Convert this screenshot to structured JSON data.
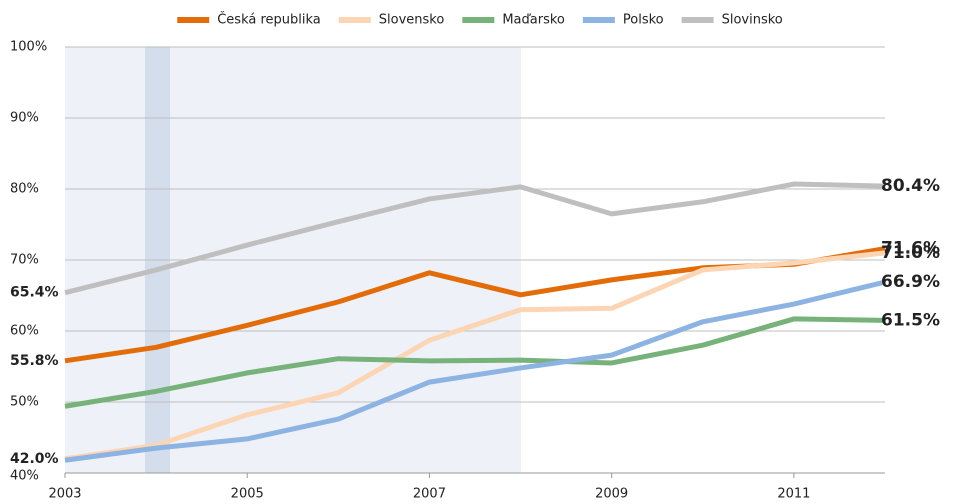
{
  "chart_data": {
    "type": "line",
    "x": [
      2003,
      2004,
      2005,
      2006,
      2007,
      2008,
      2009,
      2010,
      2011,
      2012
    ],
    "xlim": [
      2003,
      2012
    ],
    "xticks": [
      2003,
      2005,
      2007,
      2009,
      2011
    ],
    "ylim": [
      40,
      100
    ],
    "yticks": [
      {
        "value": 40,
        "label": "40%"
      },
      {
        "value": 50,
        "label": "50%"
      },
      {
        "value": 60,
        "label": "60%"
      },
      {
        "value": 70,
        "label": "70%"
      },
      {
        "value": 80,
        "label": "80%"
      },
      {
        "value": 90,
        "label": "90%"
      },
      {
        "value": 100,
        "label": "100%"
      }
    ],
    "grid": true,
    "legend": "top",
    "series": [
      {
        "name": "Česká republika",
        "color": "#e36c0a",
        "values": [
          55.8,
          57.7,
          60.8,
          64.1,
          68.2,
          65.1,
          67.2,
          68.9,
          69.4,
          71.6
        ],
        "value_labels": [
          "55.8%",
          null,
          null,
          null,
          null,
          null,
          null,
          null,
          null,
          "71.6%"
        ]
      },
      {
        "name": "Slovensko",
        "color": "#fcd5b5",
        "values": [
          42.0,
          43.9,
          48.2,
          51.3,
          58.7,
          63.0,
          63.2,
          68.6,
          69.6,
          71.0
        ],
        "value_labels": [
          "42.0%",
          null,
          null,
          null,
          null,
          null,
          null,
          null,
          null,
          "71.0%"
        ]
      },
      {
        "name": "Maďarsko",
        "color": "#77b27a",
        "values": [
          49.4,
          51.5,
          54.1,
          56.1,
          55.8,
          55.9,
          55.5,
          58.0,
          61.7,
          61.5
        ],
        "value_labels": [
          null,
          null,
          null,
          null,
          null,
          null,
          null,
          null,
          null,
          "61.5%"
        ]
      },
      {
        "name": "Polsko",
        "color": "#8db3e2",
        "values": [
          41.8,
          43.5,
          44.8,
          47.6,
          52.8,
          54.8,
          56.6,
          61.3,
          63.8,
          66.9
        ],
        "value_labels": [
          null,
          null,
          null,
          null,
          null,
          null,
          null,
          null,
          null,
          "66.9%"
        ]
      },
      {
        "name": "Slovinsko",
        "color": "#bfbfbf",
        "values": [
          65.4,
          68.6,
          72.1,
          75.4,
          78.6,
          80.3,
          76.5,
          78.2,
          80.7,
          80.4
        ],
        "value_labels": [
          "65.4%",
          null,
          null,
          null,
          null,
          null,
          null,
          null,
          null,
          "80.4%"
        ]
      }
    ]
  }
}
